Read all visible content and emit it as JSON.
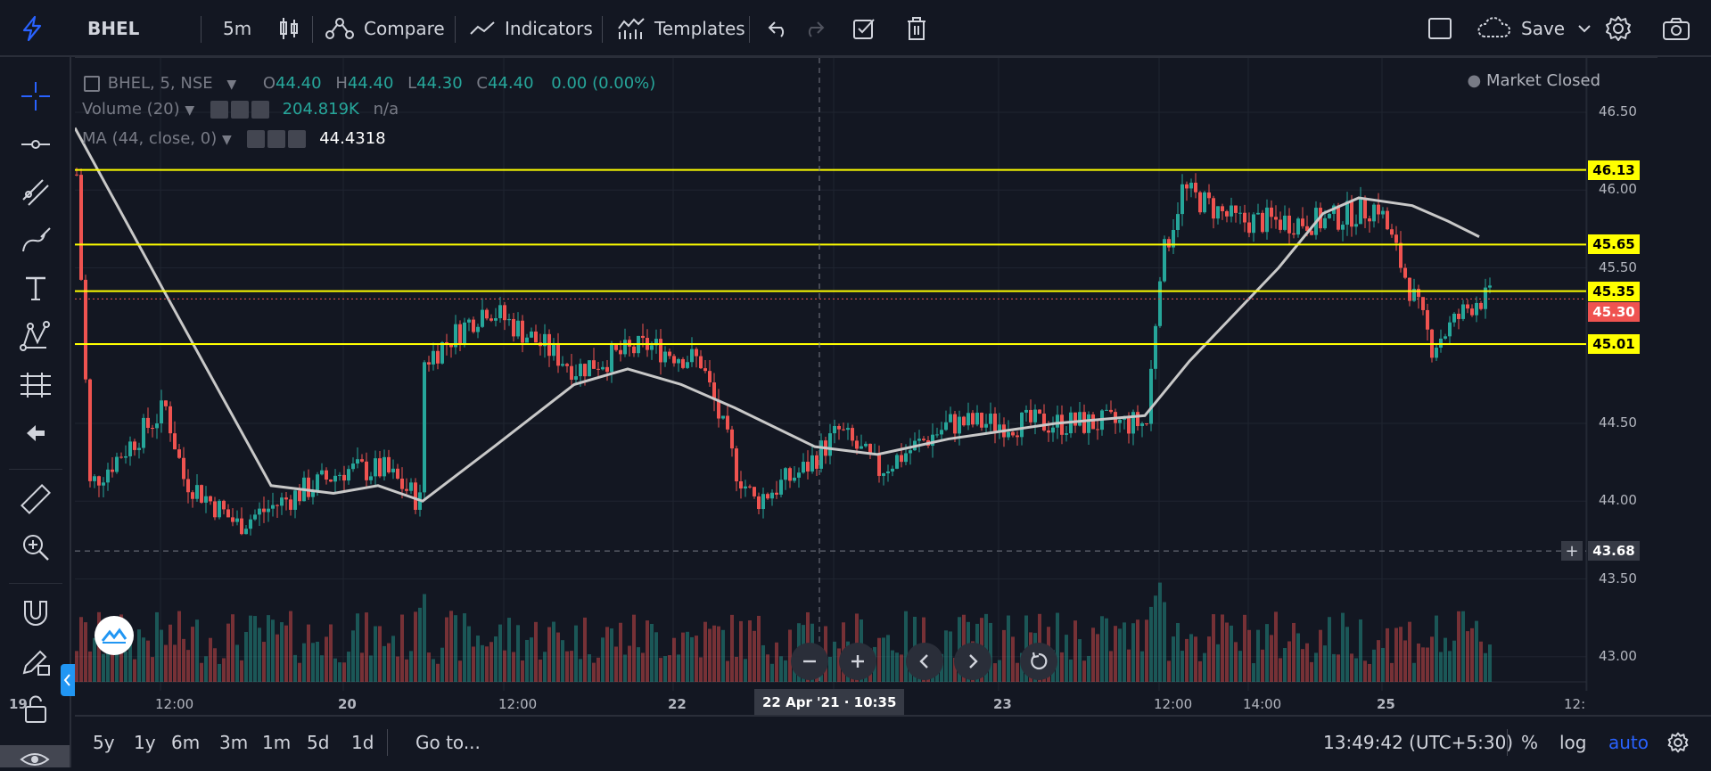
{
  "toolbar": {
    "symbol": "BHEL",
    "interval": "5m",
    "compare": "Compare",
    "indicators": "Indicators",
    "templates": "Templates",
    "save": "Save"
  },
  "legend": {
    "title": "BHEL, 5, NSE",
    "o_key": "O",
    "o_val": "44.40",
    "h_key": "H",
    "h_val": "44.40",
    "l_key": "L",
    "l_val": "44.30",
    "c_key": "C",
    "c_val": "44.40",
    "change": "0.00 (0.00%)",
    "volume_label": "Volume (20)",
    "volume_val": "204.819K",
    "volume_na": "n/a",
    "ma_label": "MA (44, close, 0)",
    "ma_val": "44.4318",
    "market_status": "Market Closed"
  },
  "price_scale": {
    "ticks": [
      "46.50",
      "46.00",
      "45.50",
      "45.00",
      "44.50",
      "44.00",
      "43.50",
      "43.00"
    ],
    "levels": [
      {
        "value": "46.13",
        "color": "#ffff00"
      },
      {
        "value": "45.65",
        "color": "#ffff00"
      },
      {
        "value": "45.35",
        "color": "#ffff00"
      },
      {
        "value": "45.01",
        "color": "#ffff00"
      }
    ],
    "last_price": "45.30",
    "cursor_price": "43.68"
  },
  "time_scale": {
    "ticks": [
      "19",
      "12:00",
      "20",
      "12:00",
      "22",
      "12:00",
      "23",
      "12:00",
      "14:00",
      "25",
      "12:"
    ],
    "cursor_time": "22 Apr '21 · 10:35"
  },
  "bottom": {
    "ranges": [
      "5y",
      "1y",
      "6m",
      "3m",
      "1m",
      "5d",
      "1d"
    ],
    "goto": "Go to...",
    "clock": "13:49:42 (UTC+5:30)",
    "percent": "%",
    "log": "log",
    "auto": "auto"
  },
  "colors": {
    "up": "#26a69a",
    "down": "#ef5350",
    "level": "#ffff00",
    "ma": "#c8c8c8",
    "accent": "#2962ff"
  }
}
